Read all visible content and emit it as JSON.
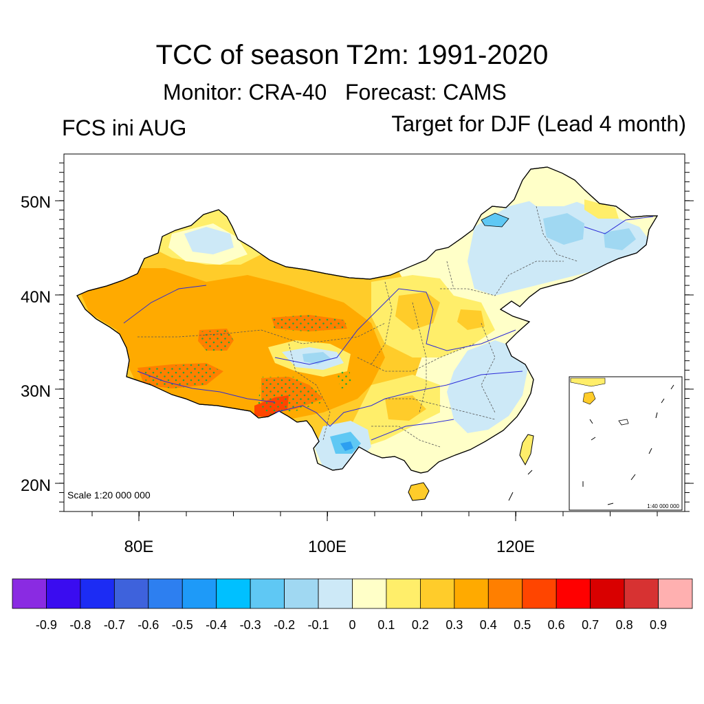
{
  "header": {
    "title": "TCC of season T2m: 1991-2020",
    "subtitle": "Monitor: CRA-40   Forecast: CAMS",
    "left_label": "FCS ini AUG",
    "right_label": "Target for DJF (Lead 4 month)"
  },
  "map": {
    "lat_labels": [
      "50N",
      "40N",
      "30N",
      "20N"
    ],
    "lon_labels": [
      "80E",
      "100E",
      "120E"
    ],
    "scale_label": "Scale 1:20 000 000",
    "inset_scale_label": "1:40 000 000"
  },
  "colorbar": {
    "colors": [
      "#8a2be2",
      "#3a0cf0",
      "#1c2cf4",
      "#3e62dc",
      "#2d7ff0",
      "#1e9af8",
      "#00c0ff",
      "#5fc8f4",
      "#a0d8f2",
      "#cde9f7",
      "#ffffc8",
      "#ffee6a",
      "#ffcc2a",
      "#ffaa00",
      "#ff7f00",
      "#ff4500",
      "#ff0000",
      "#d90000",
      "#d73232",
      "#ffb0b0"
    ],
    "labels": [
      "-0.9",
      "-0.8",
      "-0.7",
      "-0.6",
      "-0.5",
      "-0.4",
      "-0.3",
      "-0.2",
      "-0.1",
      "0",
      "0.1",
      "0.2",
      "0.3",
      "0.4",
      "0.5",
      "0.6",
      "0.7",
      "0.8",
      "0.9"
    ]
  }
}
